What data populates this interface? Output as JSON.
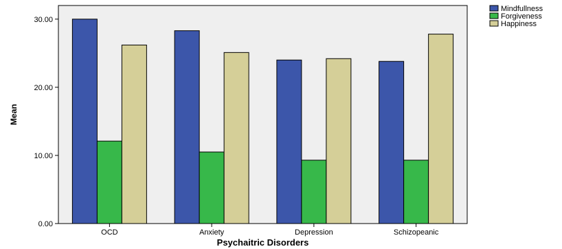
{
  "chart_data": {
    "type": "bar",
    "title": "",
    "xlabel": "Psychaitric Disorders",
    "ylabel": "Mean",
    "ylim": [
      0,
      32
    ],
    "yticks": [
      "0.00",
      "10.00",
      "20.00",
      "30.00"
    ],
    "yticks_values": [
      0,
      10,
      20,
      30
    ],
    "grid": false,
    "legend_position": "top-right",
    "plot_background": "#efefef",
    "categories": [
      "OCD",
      "Anxiety",
      "Depression",
      "Schizopeanic"
    ],
    "series": [
      {
        "name": "Mindfullness",
        "color": "#3c56aa",
        "values": [
          30.0,
          28.3,
          24.0,
          23.8
        ]
      },
      {
        "name": "Forgiveness",
        "color": "#37b84a",
        "values": [
          12.1,
          10.5,
          9.3,
          9.3
        ]
      },
      {
        "name": "Happiness",
        "color": "#d5cf98",
        "values": [
          26.2,
          25.1,
          24.2,
          27.8
        ]
      }
    ]
  }
}
